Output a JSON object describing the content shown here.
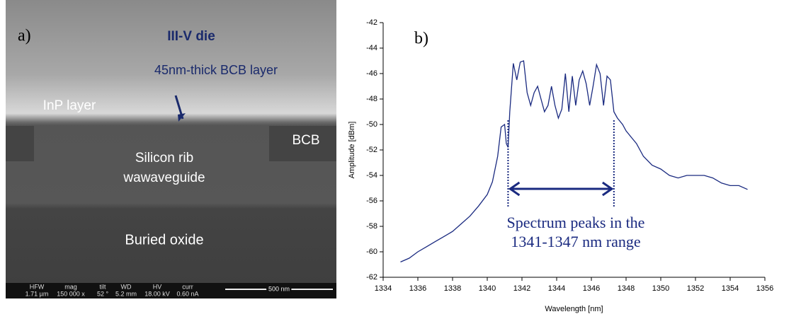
{
  "sem_image": {
    "panel_label": "a)",
    "labels": [
      "III-V die",
      "45nm-thick BCB layer",
      "InP layer",
      "BCB",
      "Silicon rib",
      "wawaveguide",
      "Buried oxide"
    ],
    "info_bar": [
      {
        "name": "HFW",
        "value": "1.71 µm"
      },
      {
        "name": "mag",
        "value": "150 000 x"
      },
      {
        "name": "tilt",
        "value": "52 °"
      },
      {
        "name": "WD",
        "value": "5.2 mm"
      },
      {
        "name": "HV",
        "value": "18.00 kV"
      },
      {
        "name": "curr",
        "value": "0.60 nA"
      }
    ],
    "scale_bar": "500 nm"
  },
  "chart_data": {
    "type": "line",
    "panel_label": "b)",
    "x_label": "Wavelength [nm]",
    "y_label": "Amplitude [dBm]",
    "annotation": [
      "Spectrum peaks in the",
      "1341-1347 nm range"
    ],
    "range_markers": [
      1341.2,
      1347.3
    ],
    "x": [
      1335.0,
      1335.5,
      1336,
      1336.5,
      1337,
      1337.5,
      1338,
      1338.5,
      1339,
      1339.5,
      1340,
      1340.3,
      1340.6,
      1340.8,
      1341.0,
      1341.1,
      1341.2,
      1341.3,
      1341.5,
      1341.7,
      1341.9,
      1342.1,
      1342.3,
      1342.5,
      1342.7,
      1342.9,
      1343.1,
      1343.3,
      1343.5,
      1343.7,
      1343.9,
      1344.1,
      1344.3,
      1344.5,
      1344.7,
      1344.9,
      1345.1,
      1345.3,
      1345.5,
      1345.7,
      1345.9,
      1346.1,
      1346.3,
      1346.5,
      1346.7,
      1346.9,
      1347.1,
      1347.3,
      1347.5,
      1347.8,
      1348.0,
      1348.3,
      1348.6,
      1349,
      1349.5,
      1350,
      1350.5,
      1351,
      1351.5,
      1352,
      1352.5,
      1353,
      1353.5,
      1354,
      1354.5,
      1355
    ],
    "series": [
      {
        "color": "#1a2a80",
        "values": [
          -60.8,
          -60.5,
          -60.0,
          -59.6,
          -59.2,
          -58.8,
          -58.4,
          -57.8,
          -57.2,
          -56.4,
          -55.5,
          -54.5,
          -52.5,
          -50.2,
          -50.0,
          -51.5,
          -51.8,
          -49,
          -45.2,
          -46.5,
          -45.1,
          -45.0,
          -47.5,
          -48.5,
          -47.5,
          -47.0,
          -48.0,
          -49.0,
          -48.5,
          -47.0,
          -48.5,
          -49.5,
          -48.8,
          -46.0,
          -49.0,
          -46.2,
          -48.5,
          -46.5,
          -45.8,
          -46.8,
          -48.5,
          -47.0,
          -45.3,
          -46.0,
          -48.5,
          -46.2,
          -46.5,
          -49.0,
          -49.5,
          -50.0,
          -50.5,
          -51.0,
          -51.5,
          -52.5,
          -53.2,
          -53.5,
          -54.0,
          -54.2,
          -54.0,
          -54.0,
          -54.0,
          -54.2,
          -54.6,
          -54.8,
          -54.8,
          -55.1
        ]
      }
    ],
    "xlim": [
      1334,
      1356
    ],
    "xticks": [
      1334,
      1336,
      1338,
      1340,
      1342,
      1344,
      1346,
      1348,
      1350,
      1352,
      1354,
      1356
    ],
    "ylim": [
      -62,
      -42
    ],
    "yticks": [
      -62,
      -60,
      -58,
      -56,
      -54,
      -52,
      -50,
      -48,
      -46,
      -44,
      -42
    ]
  }
}
